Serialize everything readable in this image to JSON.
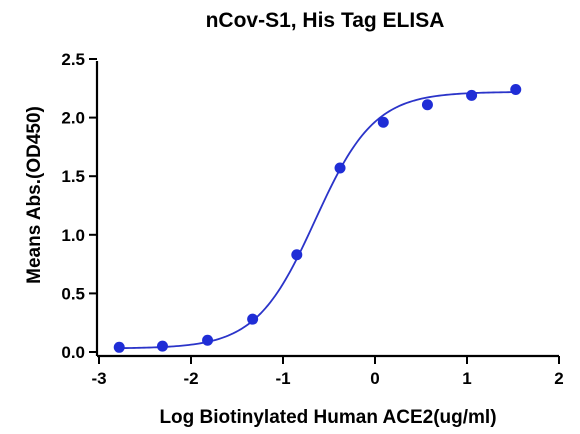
{
  "chart_data": {
    "type": "scatter",
    "title": "nCov-S1, His Tag ELISA",
    "xlabel": "Log Biotinylated Human ACE2(ug/ml)",
    "ylabel": "Means Abs.(OD450)",
    "xlim": [
      -3,
      2
    ],
    "ylim": [
      0,
      2.5
    ],
    "x_ticks": [
      "-3",
      "-2",
      "-1",
      "0",
      "1",
      "2"
    ],
    "y_ticks": [
      "0.0",
      "0.5",
      "1.0",
      "1.5",
      "2.0",
      "2.5"
    ],
    "grid": false,
    "legend": "none",
    "point_color": "#1f2dd6",
    "fit_color": "#2b34c9",
    "points": [
      {
        "x": -2.78,
        "y": 0.04
      },
      {
        "x": -2.31,
        "y": 0.05
      },
      {
        "x": -1.82,
        "y": 0.1
      },
      {
        "x": -1.33,
        "y": 0.28
      },
      {
        "x": -0.85,
        "y": 0.83
      },
      {
        "x": -0.38,
        "y": 1.57
      },
      {
        "x": 0.09,
        "y": 1.96
      },
      {
        "x": 0.57,
        "y": 2.11
      },
      {
        "x": 1.05,
        "y": 2.19
      },
      {
        "x": 1.53,
        "y": 2.24
      }
    ],
    "fit": {
      "model": "4PL",
      "bottom": 0.03,
      "top": 2.22,
      "log_ec50": -0.65,
      "hill": 1.35
    }
  }
}
